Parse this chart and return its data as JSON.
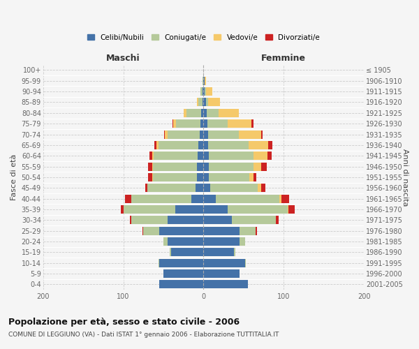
{
  "age_groups": [
    "0-4",
    "5-9",
    "10-14",
    "15-19",
    "20-24",
    "25-29",
    "30-34",
    "35-39",
    "40-44",
    "45-49",
    "50-54",
    "55-59",
    "60-64",
    "65-69",
    "70-74",
    "75-79",
    "80-84",
    "85-89",
    "90-94",
    "95-99",
    "100+"
  ],
  "birth_years": [
    "2001-2005",
    "1996-2000",
    "1991-1995",
    "1986-1990",
    "1981-1985",
    "1976-1980",
    "1971-1975",
    "1966-1970",
    "1961-1965",
    "1956-1960",
    "1951-1955",
    "1946-1950",
    "1941-1945",
    "1936-1940",
    "1931-1935",
    "1926-1930",
    "1921-1925",
    "1916-1920",
    "1911-1915",
    "1906-1910",
    "≤ 1905"
  ],
  "male": {
    "celibi": [
      55,
      50,
      55,
      40,
      45,
      55,
      45,
      35,
      15,
      10,
      8,
      8,
      7,
      6,
      5,
      4,
      3,
      1,
      1,
      0,
      0
    ],
    "coniugati": [
      0,
      0,
      1,
      2,
      5,
      20,
      45,
      65,
      75,
      60,
      55,
      55,
      55,
      50,
      40,
      30,
      18,
      5,
      3,
      1,
      0
    ],
    "vedovi": [
      0,
      0,
      0,
      0,
      0,
      0,
      0,
      0,
      0,
      0,
      1,
      1,
      2,
      3,
      3,
      4,
      4,
      2,
      0,
      0,
      0
    ],
    "divorziati": [
      0,
      0,
      0,
      0,
      0,
      1,
      2,
      3,
      8,
      3,
      5,
      5,
      3,
      2,
      1,
      1,
      0,
      0,
      0,
      0,
      0
    ]
  },
  "female": {
    "nubili": [
      55,
      45,
      52,
      38,
      45,
      45,
      35,
      30,
      15,
      8,
      7,
      7,
      7,
      6,
      6,
      5,
      4,
      3,
      1,
      1,
      0
    ],
    "coniugate": [
      0,
      0,
      1,
      2,
      7,
      20,
      55,
      75,
      80,
      60,
      50,
      55,
      55,
      50,
      38,
      25,
      15,
      3,
      2,
      0,
      0
    ],
    "vedove": [
      0,
      0,
      0,
      0,
      0,
      0,
      0,
      1,
      2,
      4,
      5,
      10,
      18,
      25,
      28,
      30,
      25,
      15,
      8,
      2,
      0
    ],
    "divorziate": [
      0,
      0,
      0,
      0,
      0,
      2,
      4,
      8,
      10,
      5,
      4,
      7,
      5,
      5,
      2,
      2,
      0,
      0,
      0,
      0,
      0
    ]
  },
  "colors": {
    "celibi": "#4472a8",
    "coniugati": "#b5c99a",
    "vedovi": "#f5c96a",
    "divorziati": "#cc2222"
  },
  "xlim": 200,
  "title": "Popolazione per età, sesso e stato civile - 2006",
  "subtitle": "COMUNE DI LEGGIUNO (VA) - Dati ISTAT 1° gennaio 2006 - Elaborazione TUTTITALIA.IT",
  "ylabel_left": "Fasce di età",
  "ylabel_right": "Anni di nascita",
  "xlabel_maschi": "Maschi",
  "xlabel_femmine": "Femmine",
  "legend_labels": [
    "Celibi/Nubili",
    "Coniugati/e",
    "Vedovi/e",
    "Divorziati/e"
  ],
  "background_color": "#f5f5f5",
  "grid_color": "#cccccc"
}
